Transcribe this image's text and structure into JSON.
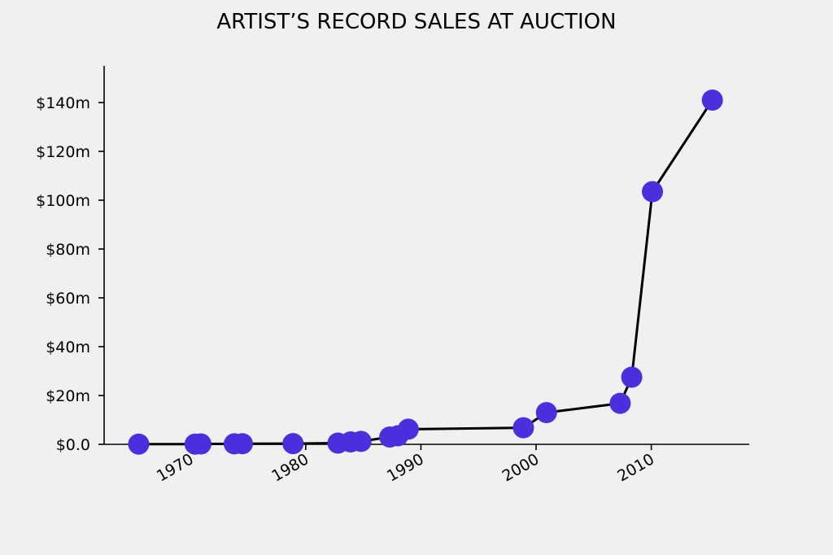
{
  "chart_data": {
    "type": "line",
    "title": "ARTIST’S RECORD SALES AT AUCTION",
    "xlabel": "",
    "ylabel": "",
    "xlim": [
      1962.5,
      2018.5
    ],
    "ylim": [
      0,
      155
    ],
    "x_ticks": [
      {
        "value": 1970,
        "label": "1970"
      },
      {
        "value": 1980,
        "label": "1980"
      },
      {
        "value": 1990,
        "label": "1990"
      },
      {
        "value": 2000,
        "label": "2000"
      },
      {
        "value": 2010,
        "label": "2010"
      }
    ],
    "y_ticks": [
      {
        "value": 0,
        "label": "$0.0"
      },
      {
        "value": 20,
        "label": "$20m"
      },
      {
        "value": 40,
        "label": "$40m"
      },
      {
        "value": 60,
        "label": "$60m"
      },
      {
        "value": 80,
        "label": "$80m"
      },
      {
        "value": 100,
        "label": "$100m"
      },
      {
        "value": 120,
        "label": "$120m"
      },
      {
        "value": 140,
        "label": "$140m"
      }
    ],
    "grid": false,
    "legend": "none",
    "series": [
      {
        "line_color": "#000000",
        "marker_color": "#4b2fdd",
        "points": [
          {
            "x": 1965.5,
            "y": 0.1
          },
          {
            "x": 1970.4,
            "y": 0.1
          },
          {
            "x": 1970.9,
            "y": 0.15
          },
          {
            "x": 1973.8,
            "y": 0.2
          },
          {
            "x": 1974.5,
            "y": 0.25
          },
          {
            "x": 1978.9,
            "y": 0.3
          },
          {
            "x": 1982.8,
            "y": 0.5
          },
          {
            "x": 1983.9,
            "y": 1.0
          },
          {
            "x": 1984.8,
            "y": 1.2
          },
          {
            "x": 1987.3,
            "y": 3.0
          },
          {
            "x": 1988.0,
            "y": 3.5
          },
          {
            "x": 1988.9,
            "y": 6.2
          },
          {
            "x": 1998.9,
            "y": 6.8
          },
          {
            "x": 2000.9,
            "y": 13.0
          },
          {
            "x": 2007.3,
            "y": 16.8
          },
          {
            "x": 2008.3,
            "y": 27.5
          },
          {
            "x": 2010.1,
            "y": 103.5
          },
          {
            "x": 2015.3,
            "y": 141.0
          }
        ]
      }
    ]
  }
}
